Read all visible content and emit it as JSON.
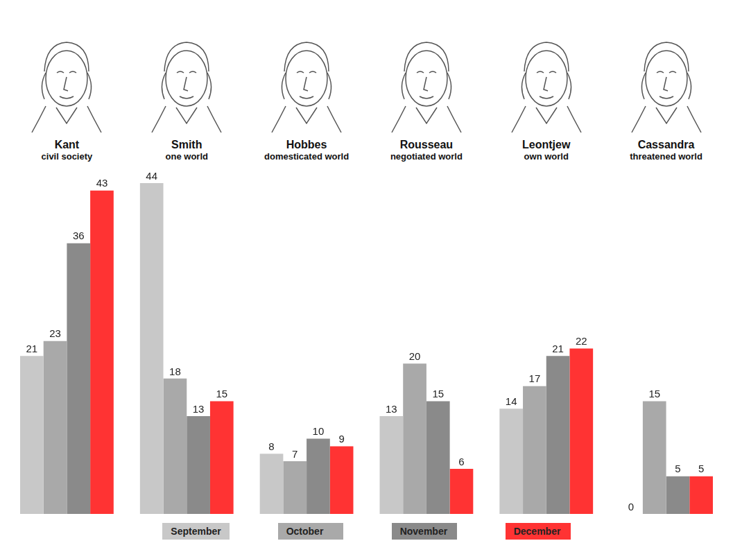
{
  "chart_data": {
    "type": "bar",
    "categories": [
      "Kant",
      "Smith",
      "Hobbes",
      "Rousseau",
      "Leontjew",
      "Cassandra"
    ],
    "category_subtitles": [
      "civil society",
      "one world",
      "domesticated world",
      "negotiated world",
      "own world",
      "threatened world"
    ],
    "series": [
      {
        "name": "September",
        "color": "#c8c8c8",
        "values": [
          21,
          44,
          8,
          13,
          14,
          0
        ]
      },
      {
        "name": "October",
        "color": "#a9a9a9",
        "values": [
          23,
          18,
          7,
          20,
          17,
          15
        ]
      },
      {
        "name": "November",
        "color": "#8a8a8a",
        "values": [
          36,
          13,
          10,
          15,
          21,
          5
        ]
      },
      {
        "name": "December",
        "color": "#ff3333",
        "values": [
          43,
          15,
          9,
          6,
          22,
          5
        ]
      }
    ],
    "ylim": [
      0,
      44
    ],
    "grid": false,
    "legend": "bottom",
    "data_labels": true,
    "tick_labels": false
  }
}
